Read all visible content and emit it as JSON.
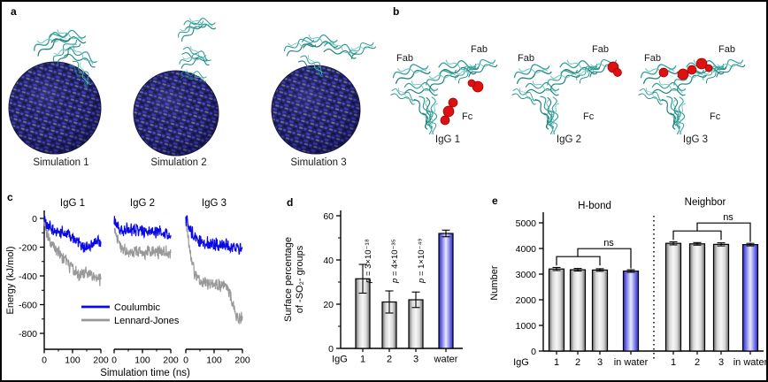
{
  "panels": {
    "a": {
      "label": "a",
      "captions": [
        "Simulation 1",
        "Simulation 2",
        "Simulation 3"
      ]
    },
    "b": {
      "label": "b",
      "structures": [
        {
          "name": "IgG 1",
          "fab_left": "Fab",
          "fab_right": "Fab",
          "fc": "Fc"
        },
        {
          "name": "IgG 2",
          "fab_left": "Fab",
          "fab_right": "Fab",
          "fc": "Fc"
        },
        {
          "name": "IgG 3",
          "fab_left": "Fab",
          "fab_right": "Fab",
          "fc": "Fc"
        }
      ]
    },
    "c": {
      "label": "c"
    },
    "d": {
      "label": "d"
    },
    "e": {
      "label": "e"
    }
  },
  "colors": {
    "coulombic_blue": "#0a0ae6",
    "lennard_jones_gray": "#999999",
    "bar_gray_edge": "#6e6e6e",
    "bar_blue_edge": "#2626c8",
    "red_patch": "#dd1111",
    "ribbon_teal": "#2e9e97",
    "sphere_navy": "#23235e"
  },
  "chart_data": [
    {
      "id": "interaction-energy",
      "type": "line",
      "ylabel": "Energy (kJ/mol)",
      "xlabel": "Simulation time (ns)",
      "ylim": [
        -900,
        50
      ],
      "yticks": [
        0,
        -200,
        -400,
        -600,
        -800
      ],
      "yticks_minor": [
        -100,
        -300,
        -500,
        -700
      ],
      "xticks": [
        0,
        100,
        200
      ],
      "xticks_minor": [
        50,
        150
      ],
      "legend": [
        {
          "label": "Coulumbic",
          "color": "#0a0ae6"
        },
        {
          "label": "Lennard-Jones",
          "color": "#999999"
        }
      ],
      "x_ns": [
        0,
        10,
        20,
        30,
        40,
        50,
        60,
        70,
        80,
        90,
        100,
        110,
        120,
        130,
        140,
        150,
        160,
        170,
        180,
        190,
        200
      ],
      "subplots": [
        {
          "title": "IgG 1",
          "coulombic": [
            0,
            -45,
            -60,
            -75,
            -85,
            -90,
            -100,
            -105,
            -110,
            -115,
            -125,
            -135,
            -155,
            -175,
            -195,
            -200,
            -190,
            -180,
            -160,
            -150,
            -160
          ],
          "lennard_jones": [
            -15,
            -120,
            -160,
            -185,
            -205,
            -230,
            -265,
            -285,
            -305,
            -330,
            -350,
            -365,
            -385,
            -395,
            -385,
            -375,
            -385,
            -395,
            -405,
            -415,
            -425
          ]
        },
        {
          "title": "IgG 2",
          "coulombic": [
            0,
            -55,
            -70,
            -80,
            -75,
            -80,
            -85,
            -80,
            -85,
            -90,
            -85,
            -80,
            -85,
            -90,
            -95,
            -90,
            -95,
            -100,
            -105,
            -110,
            -120
          ],
          "lennard_jones": [
            -30,
            -140,
            -185,
            -215,
            -230,
            -235,
            -225,
            -230,
            -235,
            -225,
            -230,
            -240,
            -230,
            -225,
            -235,
            -240,
            -230,
            -235,
            -230,
            -240,
            -245
          ]
        },
        {
          "title": "IgG 3",
          "coulombic": [
            0,
            -55,
            -95,
            -125,
            -150,
            -165,
            -170,
            -175,
            -170,
            -175,
            -180,
            -175,
            -180,
            -185,
            -180,
            -185,
            -190,
            -195,
            -200,
            -210,
            -215
          ],
          "lennard_jones": [
            -20,
            -160,
            -290,
            -370,
            -425,
            -450,
            -440,
            -445,
            -450,
            -445,
            -450,
            -460,
            -470,
            -465,
            -470,
            -485,
            -555,
            -625,
            -680,
            -705,
            -690
          ]
        }
      ]
    },
    {
      "id": "surface-percentage",
      "type": "bar",
      "ylabel_lines": [
        "Surface percentage",
        "of -SO₂- groups"
      ],
      "yticks": [
        0,
        20,
        40,
        60
      ],
      "yticks_minor": [
        10,
        30,
        50
      ],
      "ylim": [
        0,
        64
      ],
      "x_prefix": "IgG",
      "categories": [
        "1",
        "2",
        "3",
        "water"
      ],
      "values": [
        31.5,
        21,
        22,
        52
      ],
      "errors": [
        6.5,
        5,
        3.5,
        1.5
      ],
      "p_values": [
        "= 3×10⁻¹⁸",
        "= 4×10⁻³⁵",
        "= 1×10⁻⁴⁹"
      ],
      "p_symbol": "p ",
      "bar_styles": [
        "gray",
        "gray",
        "gray",
        "blue"
      ]
    },
    {
      "id": "hbond-neighbor-number",
      "type": "bar",
      "ylabel": "Number",
      "yticks": [
        0,
        1000,
        2000,
        3000,
        4000,
        5000
      ],
      "ylim": [
        0,
        5350
      ],
      "x_prefix": "IgG",
      "groups": [
        {
          "title": "H-bond",
          "ns_label": "ns",
          "categories": [
            "1",
            "2",
            "3",
            "in water"
          ],
          "values": [
            3200,
            3170,
            3160,
            3120
          ],
          "errors": [
            60,
            50,
            50,
            50
          ],
          "bar_styles": [
            "gray",
            "gray",
            "gray",
            "blue"
          ]
        },
        {
          "title": "Neighbor",
          "ns_label": "ns",
          "categories": [
            "1",
            "2",
            "3",
            "in water"
          ],
          "values": [
            4200,
            4180,
            4160,
            4150
          ],
          "errors": [
            60,
            50,
            60,
            50
          ],
          "bar_styles": [
            "gray",
            "gray",
            "gray",
            "blue"
          ]
        }
      ]
    }
  ]
}
